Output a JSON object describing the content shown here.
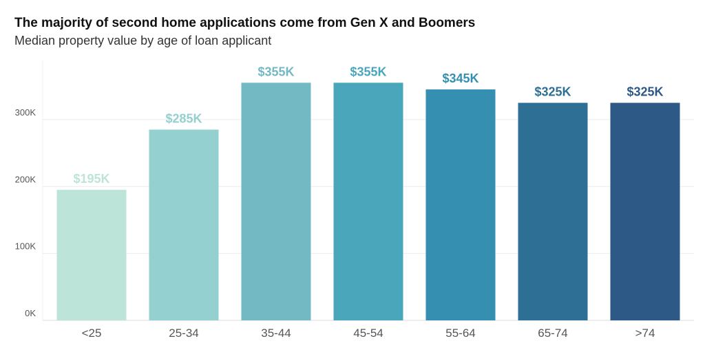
{
  "title": "The majority of second home applications come from Gen X and Boomers",
  "subtitle": "Median property value by age of loan applicant",
  "chart_data": {
    "type": "bar",
    "title": "The majority of second home applications come from Gen X and Boomers",
    "subtitle": "Median property value by age of loan applicant",
    "xlabel": "",
    "ylabel": "",
    "categories": [
      "<25",
      "25-34",
      "35-44",
      "45-54",
      "55-64",
      "65-74",
      ">74"
    ],
    "values": [
      195000,
      285000,
      355000,
      355000,
      345000,
      325000,
      325000
    ],
    "data_labels": [
      "$195K",
      "$285K",
      "$355K",
      "$355K",
      "$345K",
      "$325K",
      "$325K"
    ],
    "bar_colors": [
      "#bde4d9",
      "#94d0cf",
      "#73b9c4",
      "#4aa6bb",
      "#358fb1",
      "#2e6f96",
      "#2d5986"
    ],
    "label_colors": [
      "#bde4d9",
      "#94d0cf",
      "#73b9c4",
      "#4aa6bb",
      "#358fb1",
      "#2e6f96",
      "#2d5986"
    ],
    "ylim": [
      0,
      380000
    ],
    "yticks": [
      0,
      100000,
      200000,
      300000
    ],
    "ytick_labels": [
      "0K",
      "100K",
      "200K",
      "300K"
    ],
    "grid": true,
    "legend": "none"
  }
}
